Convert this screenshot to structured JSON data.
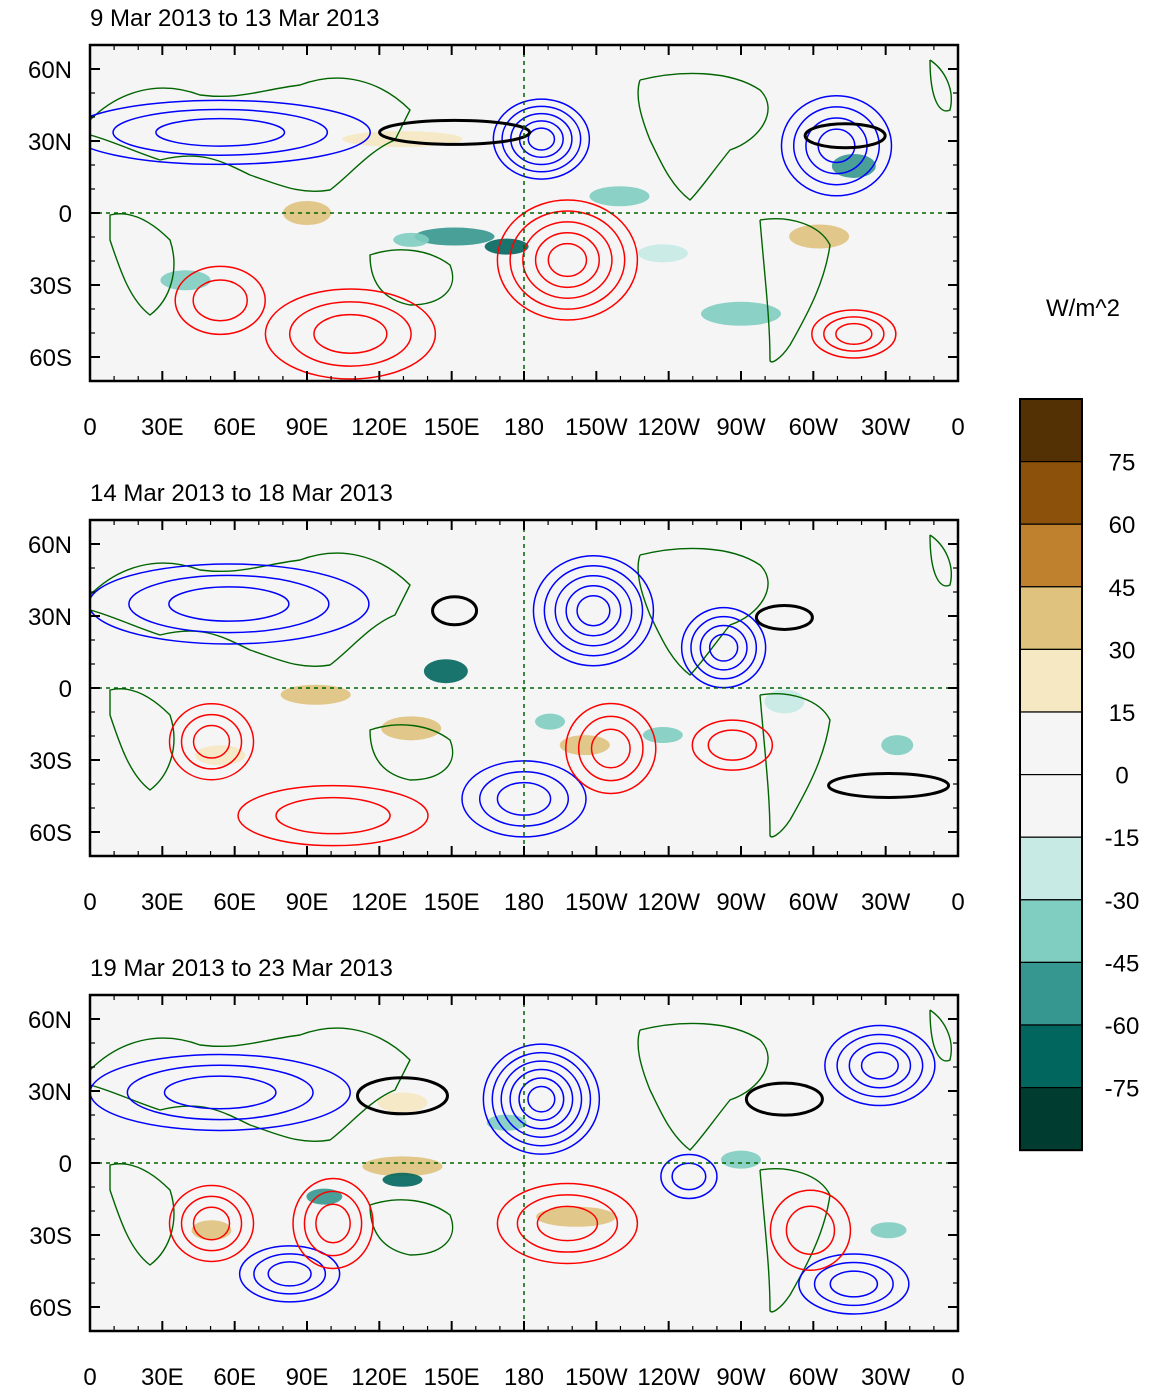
{
  "panels": [
    {
      "title": "9 Mar 2013 to 13 Mar 2013"
    },
    {
      "title": "14 Mar 2013 to 18 Mar 2013"
    },
    {
      "title": "19 Mar 2013 to 23 Mar 2013"
    }
  ],
  "lat_labels": [
    "60N",
    "30N",
    "0",
    "30S",
    "60S"
  ],
  "lon_labels": [
    "0",
    "30E",
    "60E",
    "90E",
    "120E",
    "150E",
    "180",
    "150W",
    "120W",
    "90W",
    "60W",
    "30W",
    "0"
  ],
  "colorbar": {
    "units": "W/m^2",
    "labels": [
      "75",
      "60",
      "45",
      "30",
      "15",
      "0",
      "-15",
      "-30",
      "-45",
      "-60",
      "-75"
    ],
    "colors": [
      "#543005",
      "#8c510a",
      "#bf812d",
      "#dfc27d",
      "#f6e8c3",
      "#f5f5f5",
      "#f5f5f5",
      "#c7eae5",
      "#80cdc1",
      "#35978f",
      "#01665e",
      "#003c30"
    ]
  },
  "colors": {
    "positive_contour": "#ff0000",
    "negative_contour": "#0000ff",
    "zero_contour": "#000000",
    "coastline": "#006400",
    "background": "#f5f5f5"
  }
}
